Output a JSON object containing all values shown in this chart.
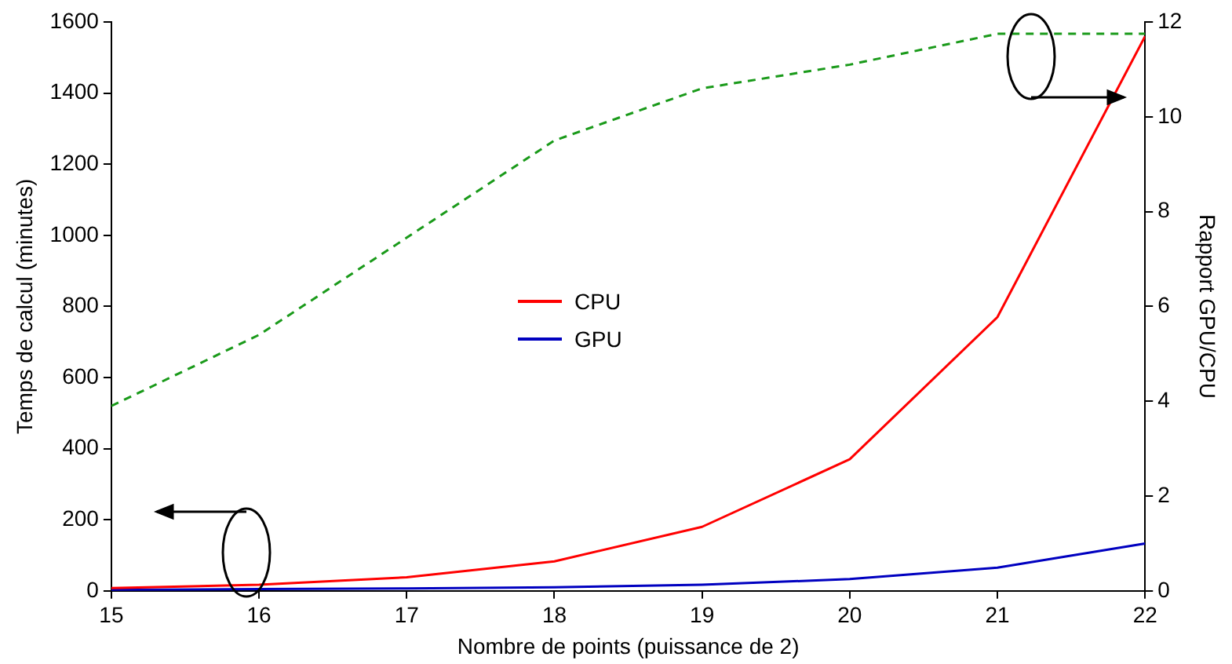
{
  "chart_data": {
    "type": "line",
    "xlabel": "Nombre de points (puissance de 2)",
    "ylabel": "Temps de calcul (minutes)",
    "y2label": "Rapport GPU/CPU",
    "x": [
      15,
      16,
      17,
      18,
      19,
      20,
      21,
      22
    ],
    "series": [
      {
        "name": "CPU",
        "color": "#ff0000",
        "values": [
          8,
          17,
          38,
          83,
          180,
          370,
          770,
          1560
        ]
      },
      {
        "name": "GPU",
        "color": "#0000c0",
        "values": [
          3,
          5,
          7,
          10,
          17,
          33,
          65,
          133
        ]
      },
      {
        "color": "#1a9a1a",
        "axis": "y2",
        "line_style": "dashed",
        "values": [
          3.9,
          5.4,
          7.45,
          9.5,
          10.6,
          11.1,
          11.75,
          11.75
        ]
      }
    ],
    "xlim": [
      15,
      22
    ],
    "xticks": [
      15,
      16,
      17,
      18,
      19,
      20,
      21,
      22
    ],
    "ylim": [
      0,
      1600
    ],
    "yticks": [
      0,
      200,
      400,
      600,
      800,
      1000,
      1200,
      1400,
      1600
    ],
    "y2lim": [
      0,
      12
    ],
    "y2ticks": [
      0,
      2,
      4,
      6,
      8,
      10,
      12
    ],
    "legend": "center",
    "grid": false,
    "marker": "none",
    "line_style": "solid"
  }
}
